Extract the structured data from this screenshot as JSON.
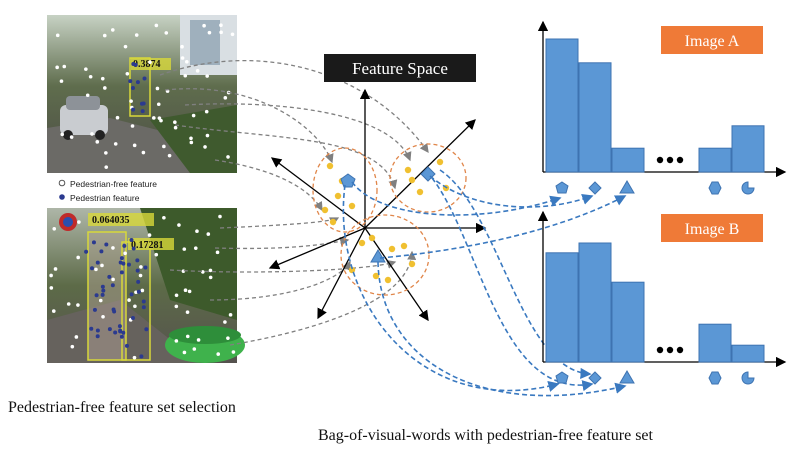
{
  "labels": {
    "feature_space": "Feature Space",
    "image_a": "Image A",
    "image_b": "Image B",
    "legend_free": "Pedestrian-free feature",
    "legend_ped": "Pedestrian feature",
    "caption_left": "Pedestrian-free feature set selection",
    "caption_right": "Bag-of-visual-words with pedestrian-free feature set"
  },
  "detections": {
    "top": "0.3874",
    "bottom_left": "0.064035",
    "bottom_right": "0.17281"
  },
  "colors": {
    "accent_orange": "#ef7a37",
    "bar_blue": "#5b97d5",
    "bar_edge": "#3e73b1",
    "cluster_dot": "#f0c030",
    "cluster_ring": "#e0864a",
    "arrow_gray": "#808080",
    "arrow_blue": "#3a79c0",
    "detect_box": "#d8d83a"
  },
  "histograms": {
    "image_a": [
      0.95,
      0.78,
      0.17,
      0.17,
      0.33
    ],
    "image_b": [
      0.78,
      0.85,
      0.57,
      0.27,
      0.12
    ],
    "word_shapes": [
      "pentagon",
      "diamond",
      "triangle",
      "hexagon",
      "half-circle"
    ]
  }
}
